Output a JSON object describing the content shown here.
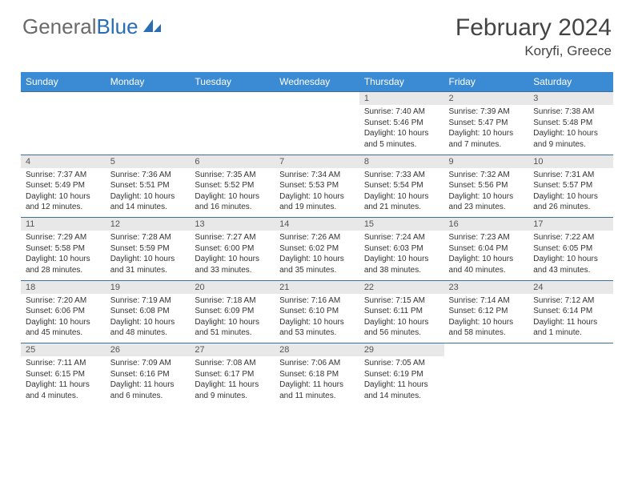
{
  "logo": {
    "text1": "General",
    "text2": "Blue"
  },
  "title": "February 2024",
  "location": "Koryfi, Greece",
  "headers": [
    "Sunday",
    "Monday",
    "Tuesday",
    "Wednesday",
    "Thursday",
    "Friday",
    "Saturday"
  ],
  "colors": {
    "header_bg": "#3b8bd4",
    "header_text": "#ffffff",
    "daynum_bg": "#e8e8e8",
    "border": "#3b6fa0",
    "body_text": "#333333",
    "logo_gray": "#6a6a6a",
    "logo_blue": "#2a6db5"
  },
  "weeks": [
    [
      null,
      null,
      null,
      null,
      {
        "n": "1",
        "sr": "Sunrise: 7:40 AM",
        "ss": "Sunset: 5:46 PM",
        "d1": "Daylight: 10 hours",
        "d2": "and 5 minutes."
      },
      {
        "n": "2",
        "sr": "Sunrise: 7:39 AM",
        "ss": "Sunset: 5:47 PM",
        "d1": "Daylight: 10 hours",
        "d2": "and 7 minutes."
      },
      {
        "n": "3",
        "sr": "Sunrise: 7:38 AM",
        "ss": "Sunset: 5:48 PM",
        "d1": "Daylight: 10 hours",
        "d2": "and 9 minutes."
      }
    ],
    [
      {
        "n": "4",
        "sr": "Sunrise: 7:37 AM",
        "ss": "Sunset: 5:49 PM",
        "d1": "Daylight: 10 hours",
        "d2": "and 12 minutes."
      },
      {
        "n": "5",
        "sr": "Sunrise: 7:36 AM",
        "ss": "Sunset: 5:51 PM",
        "d1": "Daylight: 10 hours",
        "d2": "and 14 minutes."
      },
      {
        "n": "6",
        "sr": "Sunrise: 7:35 AM",
        "ss": "Sunset: 5:52 PM",
        "d1": "Daylight: 10 hours",
        "d2": "and 16 minutes."
      },
      {
        "n": "7",
        "sr": "Sunrise: 7:34 AM",
        "ss": "Sunset: 5:53 PM",
        "d1": "Daylight: 10 hours",
        "d2": "and 19 minutes."
      },
      {
        "n": "8",
        "sr": "Sunrise: 7:33 AM",
        "ss": "Sunset: 5:54 PM",
        "d1": "Daylight: 10 hours",
        "d2": "and 21 minutes."
      },
      {
        "n": "9",
        "sr": "Sunrise: 7:32 AM",
        "ss": "Sunset: 5:56 PM",
        "d1": "Daylight: 10 hours",
        "d2": "and 23 minutes."
      },
      {
        "n": "10",
        "sr": "Sunrise: 7:31 AM",
        "ss": "Sunset: 5:57 PM",
        "d1": "Daylight: 10 hours",
        "d2": "and 26 minutes."
      }
    ],
    [
      {
        "n": "11",
        "sr": "Sunrise: 7:29 AM",
        "ss": "Sunset: 5:58 PM",
        "d1": "Daylight: 10 hours",
        "d2": "and 28 minutes."
      },
      {
        "n": "12",
        "sr": "Sunrise: 7:28 AM",
        "ss": "Sunset: 5:59 PM",
        "d1": "Daylight: 10 hours",
        "d2": "and 31 minutes."
      },
      {
        "n": "13",
        "sr": "Sunrise: 7:27 AM",
        "ss": "Sunset: 6:00 PM",
        "d1": "Daylight: 10 hours",
        "d2": "and 33 minutes."
      },
      {
        "n": "14",
        "sr": "Sunrise: 7:26 AM",
        "ss": "Sunset: 6:02 PM",
        "d1": "Daylight: 10 hours",
        "d2": "and 35 minutes."
      },
      {
        "n": "15",
        "sr": "Sunrise: 7:24 AM",
        "ss": "Sunset: 6:03 PM",
        "d1": "Daylight: 10 hours",
        "d2": "and 38 minutes."
      },
      {
        "n": "16",
        "sr": "Sunrise: 7:23 AM",
        "ss": "Sunset: 6:04 PM",
        "d1": "Daylight: 10 hours",
        "d2": "and 40 minutes."
      },
      {
        "n": "17",
        "sr": "Sunrise: 7:22 AM",
        "ss": "Sunset: 6:05 PM",
        "d1": "Daylight: 10 hours",
        "d2": "and 43 minutes."
      }
    ],
    [
      {
        "n": "18",
        "sr": "Sunrise: 7:20 AM",
        "ss": "Sunset: 6:06 PM",
        "d1": "Daylight: 10 hours",
        "d2": "and 45 minutes."
      },
      {
        "n": "19",
        "sr": "Sunrise: 7:19 AM",
        "ss": "Sunset: 6:08 PM",
        "d1": "Daylight: 10 hours",
        "d2": "and 48 minutes."
      },
      {
        "n": "20",
        "sr": "Sunrise: 7:18 AM",
        "ss": "Sunset: 6:09 PM",
        "d1": "Daylight: 10 hours",
        "d2": "and 51 minutes."
      },
      {
        "n": "21",
        "sr": "Sunrise: 7:16 AM",
        "ss": "Sunset: 6:10 PM",
        "d1": "Daylight: 10 hours",
        "d2": "and 53 minutes."
      },
      {
        "n": "22",
        "sr": "Sunrise: 7:15 AM",
        "ss": "Sunset: 6:11 PM",
        "d1": "Daylight: 10 hours",
        "d2": "and 56 minutes."
      },
      {
        "n": "23",
        "sr": "Sunrise: 7:14 AM",
        "ss": "Sunset: 6:12 PM",
        "d1": "Daylight: 10 hours",
        "d2": "and 58 minutes."
      },
      {
        "n": "24",
        "sr": "Sunrise: 7:12 AM",
        "ss": "Sunset: 6:14 PM",
        "d1": "Daylight: 11 hours",
        "d2": "and 1 minute."
      }
    ],
    [
      {
        "n": "25",
        "sr": "Sunrise: 7:11 AM",
        "ss": "Sunset: 6:15 PM",
        "d1": "Daylight: 11 hours",
        "d2": "and 4 minutes."
      },
      {
        "n": "26",
        "sr": "Sunrise: 7:09 AM",
        "ss": "Sunset: 6:16 PM",
        "d1": "Daylight: 11 hours",
        "d2": "and 6 minutes."
      },
      {
        "n": "27",
        "sr": "Sunrise: 7:08 AM",
        "ss": "Sunset: 6:17 PM",
        "d1": "Daylight: 11 hours",
        "d2": "and 9 minutes."
      },
      {
        "n": "28",
        "sr": "Sunrise: 7:06 AM",
        "ss": "Sunset: 6:18 PM",
        "d1": "Daylight: 11 hours",
        "d2": "and 11 minutes."
      },
      {
        "n": "29",
        "sr": "Sunrise: 7:05 AM",
        "ss": "Sunset: 6:19 PM",
        "d1": "Daylight: 11 hours",
        "d2": "and 14 minutes."
      },
      null,
      null
    ]
  ]
}
